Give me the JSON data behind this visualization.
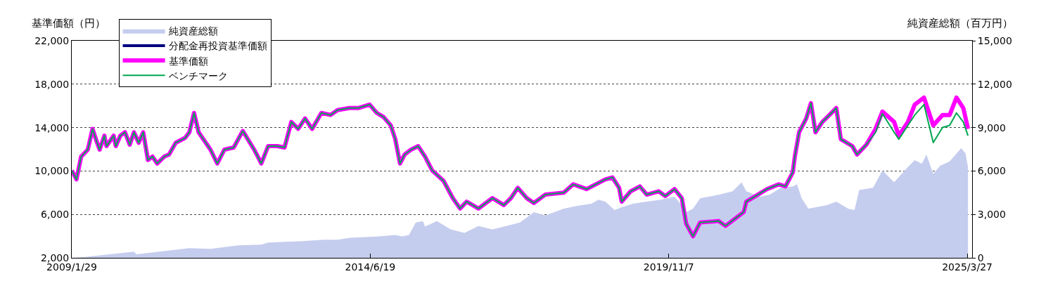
{
  "chart_data": {
    "type": "line",
    "ylabel": "基準価額（円）",
    "y2label": "純資産総額（百万円）",
    "xlim": [
      "2009-01-29",
      "2025-04-28"
    ],
    "xticks": [
      {
        "value": "2009-01-29",
        "label": "2009/1/29"
      },
      {
        "value": "2014-06-19",
        "label": "2014/6/19"
      },
      {
        "value": "2019-11-07",
        "label": "2019/11/7"
      },
      {
        "value": "2025-03-27",
        "label": "2025/3/27"
      }
    ],
    "ylim": [
      2000,
      22000
    ],
    "yticks": [
      {
        "value": 2000,
        "label": "2,000"
      },
      {
        "value": 6000,
        "label": "6,000"
      },
      {
        "value": 10000,
        "label": "10,000"
      },
      {
        "value": 14000,
        "label": "14,000"
      },
      {
        "value": 18000,
        "label": "18,000"
      },
      {
        "value": 22000,
        "label": "22,000"
      }
    ],
    "y2lim": [
      0,
      15000
    ],
    "y2ticks": [
      0,
      {
        "value": 3000,
        "label": "3,000"
      },
      {
        "value": 6000,
        "label": "6,000"
      },
      {
        "value": 9000,
        "label": "9,000"
      },
      {
        "value": 12000,
        "label": "12,000"
      },
      {
        "value": 15000,
        "label": "15,000"
      }
    ],
    "grid": "y",
    "legend": "top left",
    "series": [
      {
        "name": "純資産総額",
        "type": "area",
        "axis": "y2",
        "color": "#c5cdee",
        "x": [
          "2009-01-29",
          "2009-04-15",
          "2010-03-15",
          "2010-04-01",
          "2011-03-15",
          "2011-08-01",
          "2012-02-01",
          "2012-07-01",
          "2012-08-15",
          "2013-04-01",
          "2013-08-15",
          "2013-11-15",
          "2014-02-15",
          "2014-08-15",
          "2014-12-01",
          "2015-01-15",
          "2015-03-01",
          "2015-04-15",
          "2015-06-01",
          "2015-06-15",
          "2015-09-01",
          "2015-12-01",
          "2016-03-01",
          "2016-06-01",
          "2016-09-01",
          "2016-12-01",
          "2017-03-01",
          "2017-04-15",
          "2017-06-01",
          "2017-08-15",
          "2017-12-15",
          "2018-03-15",
          "2018-06-15",
          "2018-08-01",
          "2018-09-15",
          "2018-11-15",
          "2019-01-01",
          "2019-03-15",
          "2019-06-15",
          "2019-09-15",
          "2019-12-15",
          "2020-02-01",
          "2020-03-01",
          "2020-04-15",
          "2020-06-01",
          "2020-10-01",
          "2021-01-01",
          "2021-03-01",
          "2021-04-01",
          "2021-07-01",
          "2021-09-01",
          "2021-11-15",
          "2022-02-01",
          "2022-03-01",
          "2022-04-01",
          "2022-05-15",
          "2022-09-15",
          "2022-11-15",
          "2023-02-01",
          "2023-03-15",
          "2023-04-15",
          "2023-07-15",
          "2023-09-15",
          "2023-12-01",
          "2024-03-01",
          "2024-04-15",
          "2024-06-01",
          "2024-07-01",
          "2024-08-15",
          "2024-10-01",
          "2024-12-01",
          "2025-02-15",
          "2025-03-15",
          "2025-04-01"
        ],
        "values": [
          0,
          50,
          430,
          240,
          670,
          620,
          860,
          910,
          1050,
          1150,
          1250,
          1250,
          1390,
          1480,
          1580,
          1480,
          1580,
          2440,
          2540,
          2160,
          2540,
          1960,
          1720,
          2200,
          1960,
          2200,
          2440,
          2780,
          3160,
          2920,
          3400,
          3590,
          3740,
          4020,
          3880,
          3300,
          3500,
          3740,
          3880,
          4020,
          4220,
          3640,
          3160,
          3400,
          4120,
          4360,
          4600,
          5220,
          4600,
          4220,
          4360,
          4840,
          4930,
          5080,
          4120,
          3400,
          3640,
          3880,
          3400,
          3300,
          4690,
          4840,
          6040,
          5220,
          6280,
          6750,
          6510,
          7140,
          5800,
          6370,
          6660,
          7570,
          7230,
          6280
        ]
      },
      {
        "name": "分配金再投資基準価額",
        "color": "#000080"
      },
      {
        "name": "基準価額",
        "color": "#ff00ff",
        "x": [
          "2009-01-29",
          "2009-03-01",
          "2009-04-01",
          "2009-05-15",
          "2009-06-15",
          "2009-07-15",
          "2009-08-01",
          "2009-09-01",
          "2009-09-15",
          "2009-11-01",
          "2009-11-15",
          "2009-12-15",
          "2010-01-15",
          "2010-02-15",
          "2010-03-15",
          "2010-04-15",
          "2010-05-15",
          "2010-06-15",
          "2010-07-15",
          "2010-08-15",
          "2010-10-01",
          "2010-11-01",
          "2010-12-15",
          "2011-02-15",
          "2011-03-15",
          "2011-04-15",
          "2011-05-15",
          "2011-08-01",
          "2011-09-15",
          "2011-11-01",
          "2012-01-01",
          "2012-03-01",
          "2012-05-15",
          "2012-07-01",
          "2012-08-15",
          "2012-10-15",
          "2012-12-01",
          "2013-01-15",
          "2013-03-01",
          "2013-04-15",
          "2013-06-01",
          "2013-08-01",
          "2013-10-01",
          "2013-11-15",
          "2014-02-01",
          "2014-04-01",
          "2014-06-15",
          "2014-08-01",
          "2014-09-15",
          "2014-11-01",
          "2014-12-01",
          "2015-01-01",
          "2015-02-01",
          "2015-03-15",
          "2015-05-01",
          "2015-06-15",
          "2015-08-01",
          "2015-10-15",
          "2015-12-15",
          "2016-02-01",
          "2016-03-15",
          "2016-06-01",
          "2016-09-01",
          "2016-11-15",
          "2017-01-01",
          "2017-02-15",
          "2017-04-15",
          "2017-06-01",
          "2017-08-15",
          "2017-12-15",
          "2018-02-15",
          "2018-05-15",
          "2018-09-15",
          "2018-11-01",
          "2018-12-15",
          "2019-01-01",
          "2019-03-01",
          "2019-05-01",
          "2019-06-15",
          "2019-09-01",
          "2019-10-15",
          "2019-12-15",
          "2020-02-01",
          "2020-03-01",
          "2020-04-15",
          "2020-06-01",
          "2020-10-01",
          "2020-11-15",
          "2021-03-15",
          "2021-04-01",
          "2021-06-01",
          "2021-08-15",
          "2021-11-01",
          "2021-12-15",
          "2022-02-01",
          "2022-02-15",
          "2022-03-15",
          "2022-05-01",
          "2022-06-01",
          "2022-07-01",
          "2022-08-15",
          "2022-10-01",
          "2022-11-15",
          "2022-12-15",
          "2023-03-01",
          "2023-04-01",
          "2023-06-01",
          "2023-08-01",
          "2023-09-15",
          "2023-12-01",
          "2024-01-01",
          "2024-03-01",
          "2024-04-15",
          "2024-06-15",
          "2024-08-15",
          "2024-10-15",
          "2024-12-01",
          "2025-01-15",
          "2025-03-01",
          "2025-04-01"
        ],
        "values": [
          10050,
          9220,
          11330,
          11970,
          13880,
          12600,
          11970,
          13250,
          12290,
          13250,
          12290,
          13250,
          13570,
          12420,
          13570,
          12600,
          13570,
          11010,
          11330,
          10690,
          11330,
          11520,
          12600,
          13050,
          13570,
          15350,
          13570,
          11970,
          10690,
          11970,
          12160,
          13690,
          11970,
          10690,
          12290,
          12290,
          12160,
          14520,
          13880,
          14840,
          13880,
          15350,
          15160,
          15610,
          15800,
          15800,
          16120,
          15350,
          14970,
          14200,
          12930,
          10690,
          11520,
          11970,
          12290,
          11330,
          10050,
          9090,
          7500,
          6540,
          7180,
          6540,
          7500,
          6860,
          7500,
          8450,
          7500,
          7050,
          7820,
          8010,
          8770,
          8330,
          9220,
          9410,
          8450,
          7180,
          8130,
          8580,
          7820,
          8130,
          7690,
          8330,
          7500,
          5130,
          3980,
          5260,
          5390,
          4940,
          6220,
          7180,
          7690,
          8330,
          8770,
          8580,
          9860,
          11330,
          13570,
          14840,
          16250,
          13570,
          14520,
          15160,
          15800,
          12930,
          12290,
          11520,
          12420,
          13880,
          15480,
          14520,
          13250,
          14520,
          16120,
          16760,
          14200,
          15160,
          15160,
          16760,
          15800,
          13880
        ]
      },
      {
        "name": "ベンチマーク",
        "color": "#00a650",
        "x": [
          "2009-01-29",
          "2009-03-01",
          "2009-04-01",
          "2009-05-15",
          "2009-06-15",
          "2009-07-15",
          "2009-08-01",
          "2009-09-01",
          "2009-09-15",
          "2009-11-01",
          "2009-11-15",
          "2009-12-15",
          "2010-01-15",
          "2010-02-15",
          "2010-03-15",
          "2010-04-15",
          "2010-05-15",
          "2010-06-15",
          "2010-07-15",
          "2010-08-15",
          "2010-10-01",
          "2010-11-01",
          "2010-12-15",
          "2011-02-15",
          "2011-03-15",
          "2011-04-15",
          "2011-05-15",
          "2011-08-01",
          "2011-09-15",
          "2011-11-01",
          "2012-01-01",
          "2012-03-01",
          "2012-05-15",
          "2012-07-01",
          "2012-08-15",
          "2012-10-15",
          "2012-12-01",
          "2013-01-15",
          "2013-03-01",
          "2013-04-15",
          "2013-06-01",
          "2013-08-01",
          "2013-10-01",
          "2013-11-15",
          "2014-02-01",
          "2014-04-01",
          "2014-06-15",
          "2014-08-01",
          "2014-09-15",
          "2014-11-01",
          "2014-12-01",
          "2015-01-01",
          "2015-02-01",
          "2015-03-15",
          "2015-05-01",
          "2015-06-15",
          "2015-08-01",
          "2015-10-15",
          "2015-12-15",
          "2016-02-01",
          "2016-03-15",
          "2016-06-01",
          "2016-09-01",
          "2016-11-15",
          "2017-01-01",
          "2017-02-15",
          "2017-04-15",
          "2017-06-01",
          "2017-08-15",
          "2017-12-15",
          "2018-02-15",
          "2018-05-15",
          "2018-09-15",
          "2018-11-01",
          "2018-12-15",
          "2019-01-01",
          "2019-03-01",
          "2019-05-01",
          "2019-06-15",
          "2019-09-01",
          "2019-10-15",
          "2019-12-15",
          "2020-02-01",
          "2020-03-01",
          "2020-04-15",
          "2020-06-01",
          "2020-10-01",
          "2020-11-15",
          "2021-03-15",
          "2021-04-01",
          "2021-06-01",
          "2021-08-15",
          "2021-11-01",
          "2021-12-15",
          "2022-02-01",
          "2022-02-15",
          "2022-03-15",
          "2022-05-01",
          "2022-06-01",
          "2022-07-01",
          "2022-08-15",
          "2022-10-01",
          "2022-11-15",
          "2022-12-15",
          "2023-03-01",
          "2023-04-01",
          "2023-06-01",
          "2023-08-01",
          "2023-09-15",
          "2023-12-01",
          "2024-01-01",
          "2024-03-01",
          "2024-04-15",
          "2024-06-15",
          "2024-08-15",
          "2024-10-15",
          "2024-12-01",
          "2025-01-15",
          "2025-03-01",
          "2025-04-01"
        ],
        "values": [
          10050,
          9220,
          11330,
          11970,
          13880,
          12600,
          11970,
          13250,
          12290,
          13250,
          12290,
          13250,
          13570,
          12420,
          13570,
          12600,
          13570,
          11010,
          11330,
          10690,
          11330,
          11520,
          12600,
          13050,
          13570,
          15350,
          13570,
          11970,
          10690,
          11970,
          12160,
          13690,
          11970,
          10690,
          12290,
          12290,
          12160,
          14520,
          13880,
          14840,
          13880,
          15350,
          15160,
          15610,
          15800,
          15800,
          16120,
          15350,
          14970,
          14200,
          12930,
          10690,
          11520,
          11970,
          12290,
          11330,
          10050,
          9090,
          7500,
          6540,
          7180,
          6540,
          7500,
          6860,
          7500,
          8450,
          7500,
          7050,
          7820,
          8010,
          8770,
          8330,
          9220,
          9410,
          8450,
          7180,
          8130,
          8580,
          7820,
          8130,
          7690,
          8330,
          7500,
          5130,
          3980,
          5260,
          5390,
          4940,
          6220,
          7180,
          7690,
          8330,
          8770,
          8580,
          9860,
          11330,
          13570,
          14840,
          16250,
          13570,
          14520,
          15160,
          15800,
          12930,
          12290,
          11520,
          12420,
          13570,
          15290,
          13570,
          12930,
          14200,
          15160,
          16120,
          12610,
          14010,
          14200,
          15350,
          14520,
          13250
        ]
      }
    ]
  }
}
